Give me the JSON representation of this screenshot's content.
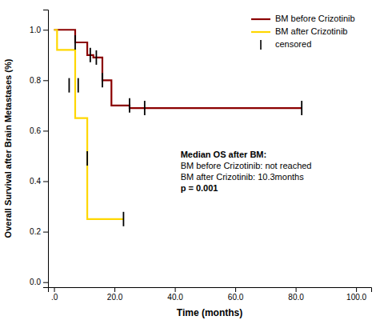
{
  "chart_data": {
    "type": "line",
    "xlabel": "Time (months)",
    "ylabel": "Overall Survival after Brain Metastases (%)",
    "xlim": [
      -2,
      105
    ],
    "ylim": [
      -0.02,
      1.08
    ],
    "xticks": [
      {
        "value": 0,
        "label": ".0"
      },
      {
        "value": 20,
        "label": "20.0"
      },
      {
        "value": 40,
        "label": "40.0"
      },
      {
        "value": 60,
        "label": "60.0"
      },
      {
        "value": 80,
        "label": "80.0"
      },
      {
        "value": 100,
        "label": "100.0"
      }
    ],
    "yticks": [
      {
        "value": 0,
        "label": "0.0"
      },
      0.2,
      0.4,
      0.6,
      0.8,
      {
        "value": 1,
        "label": "1.0"
      }
    ],
    "grid": false,
    "legend": "upper-right",
    "series": [
      {
        "name": "BM before Crizotinib",
        "type": "step",
        "color": "#8B0000",
        "x": [
          0,
          7,
          7,
          11,
          11,
          13,
          13,
          16,
          16,
          19,
          19,
          25,
          25,
          30,
          30,
          82,
          82
        ],
        "values": [
          1.0,
          1.0,
          0.95,
          0.95,
          0.9,
          0.9,
          0.89,
          0.89,
          0.8,
          0.8,
          0.7,
          0.7,
          0.69,
          0.69,
          0.69,
          0.69,
          0.69
        ]
      },
      {
        "name": "BM after Crizotinib",
        "type": "line",
        "color": "#FFD700",
        "x": [
          0,
          1,
          1,
          7,
          7,
          11,
          11,
          23,
          23
        ],
        "values": [
          1.0,
          1.0,
          0.92,
          0.92,
          0.65,
          0.65,
          0.25,
          0.25,
          0.25
        ]
      },
      {
        "name": "censored",
        "type": "scatter",
        "marker": "|",
        "color": "#000000",
        "x": [
          7,
          12,
          14,
          16,
          25,
          30,
          82,
          5,
          8,
          11,
          23
        ],
        "values": [
          0.95,
          0.9,
          0.89,
          0.8,
          0.7,
          0.69,
          0.69,
          0.78,
          0.78,
          0.49,
          0.25
        ]
      }
    ],
    "annotations": [
      "Median OS after BM:",
      "BM before Crizotinib: not reached",
      "BM after Crizotinib: 10.3months",
      "p = 0.001"
    ]
  }
}
